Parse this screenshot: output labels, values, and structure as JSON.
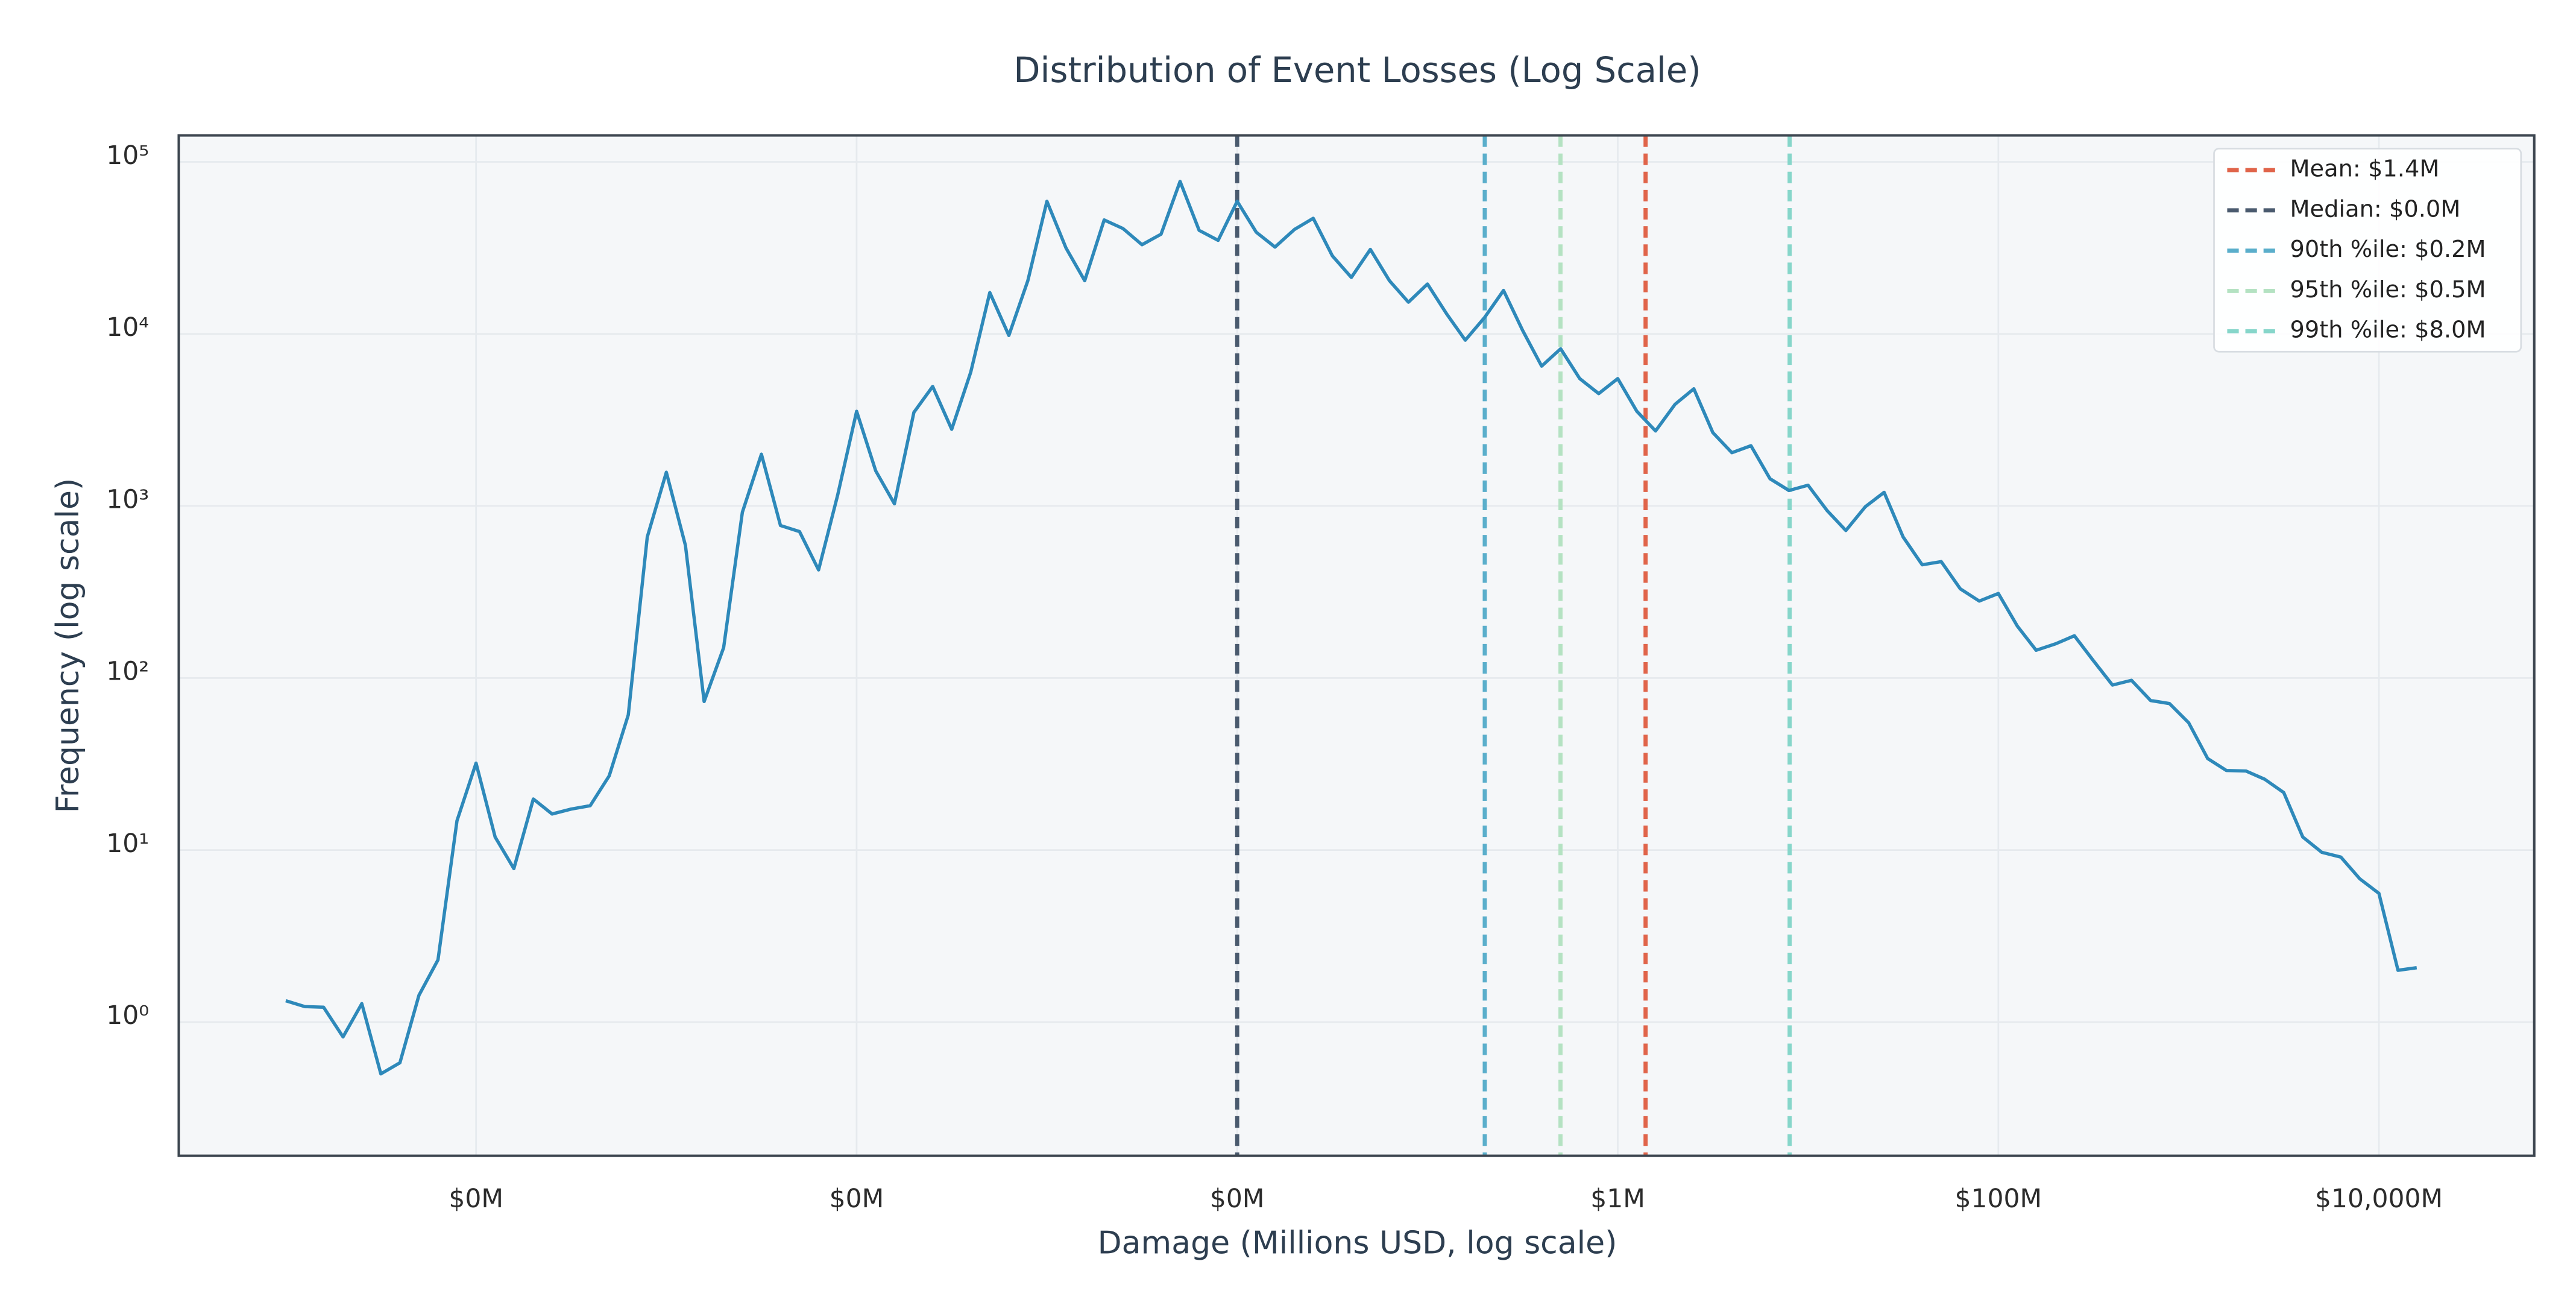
{
  "chart_data": {
    "type": "line",
    "title": "Distribution of Event Losses (Log Scale)",
    "x_label": "Damage (Millions USD, log scale)",
    "y_label": "Frequency (log scale)",
    "xscale": "log",
    "yscale": "log",
    "grid": true,
    "legend": "upper right",
    "xlim": [
      2.74e-08,
      65500
    ],
    "ylim": [
      0.167,
      142600
    ],
    "xticks": [
      {
        "value": 1e-06,
        "label": "$0M"
      },
      {
        "value": 0.0001,
        "label": "$0M"
      },
      {
        "value": 0.01,
        "label": "$0M"
      },
      {
        "value": 1,
        "label": "$1M"
      },
      {
        "value": 100,
        "label": "$100M"
      },
      {
        "value": 10000,
        "label": "$10,000M"
      }
    ],
    "yticks": [
      {
        "value": 1,
        "label": "10⁰"
      },
      {
        "value": 10,
        "label": "10¹"
      },
      {
        "value": 100,
        "label": "10²"
      },
      {
        "value": 1000,
        "label": "10³"
      },
      {
        "value": 10000,
        "label": "10⁴"
      },
      {
        "value": 100000,
        "label": "10⁵"
      }
    ],
    "x": [
      1e-07,
      1.26e-07,
      1.58e-07,
      2e-07,
      2.51e-07,
      3.16e-07,
      3.98e-07,
      5.01e-07,
      6.31e-07,
      7.94e-07,
      1e-06,
      1.26e-06,
      1.58e-06,
      2e-06,
      2.51e-06,
      3.16e-06,
      3.98e-06,
      5.01e-06,
      6.31e-06,
      7.94e-06,
      1e-05,
      1.26e-05,
      1.58e-05,
      2e-05,
      2.51e-05,
      3.16e-05,
      3.98e-05,
      5.01e-05,
      6.31e-05,
      7.94e-05,
      0.0001,
      0.000126,
      0.000158,
      0.0002,
      0.000251,
      0.000316,
      0.000398,
      0.000501,
      0.000631,
      0.000794,
      0.001,
      0.00126,
      0.00158,
      0.002,
      0.00251,
      0.00316,
      0.00398,
      0.00501,
      0.00631,
      0.00794,
      0.01,
      0.0126,
      0.0158,
      0.02,
      0.0251,
      0.0316,
      0.0398,
      0.0501,
      0.0631,
      0.0794,
      0.1,
      0.126,
      0.158,
      0.2,
      0.251,
      0.316,
      0.398,
      0.501,
      0.631,
      0.794,
      1,
      1.26,
      1.58,
      2,
      2.51,
      3.16,
      3.98,
      5.01,
      6.31,
      7.94,
      10,
      12.6,
      15.8,
      20,
      25.1,
      31.6,
      39.8,
      50.1,
      63.1,
      79.4,
      100,
      126,
      158,
      200,
      251,
      316,
      398,
      501,
      631,
      794,
      1000,
      1260,
      1580,
      2000,
      2510,
      3160,
      3980,
      5010,
      6310,
      7940,
      10000,
      12600,
      15800
    ],
    "series": [
      {
        "color": "#2e89ba",
        "values": [
          1.33,
          1.23,
          1.22,
          0.82,
          1.28,
          0.5,
          0.58,
          1.43,
          2.3,
          14.8,
          32,
          11.9,
          7.8,
          19.8,
          16.2,
          17.3,
          18.1,
          27,
          61,
          660,
          1570,
          590,
          73,
          150,
          920,
          2000,
          770,
          710,
          425,
          1150,
          3550,
          1600,
          1030,
          3500,
          4950,
          2790,
          6000,
          17400,
          9800,
          20400,
          59000,
          31600,
          20400,
          46000,
          41000,
          33000,
          38000,
          77000,
          40000,
          35000,
          59000,
          39000,
          32000,
          40500,
          47000,
          28500,
          21300,
          31000,
          20400,
          15300,
          19500,
          13100,
          9200,
          12500,
          17900,
          10500,
          6500,
          8200,
          5500,
          4500,
          5500,
          3550,
          2730,
          3900,
          4800,
          2670,
          2040,
          2240,
          1440,
          1230,
          1320,
          940,
          720,
          990,
          1200,
          660,
          455,
          475,
          330,
          280,
          310,
          200,
          145,
          158,
          176,
          126,
          91,
          97,
          74,
          71,
          55,
          34,
          29,
          28.8,
          25.8,
          21.6,
          11.9,
          9.7,
          9.1,
          6.8,
          5.6,
          2.0,
          2.07
        ]
      }
    ],
    "reference_lines": [
      {
        "name": "Mean: $1.4M",
        "value": 1.4,
        "color": "#e0644a"
      },
      {
        "name": "Median: $0.0M",
        "value": 0.01,
        "color": "#4a5a6e"
      },
      {
        "name": "90th %ile: $0.2M",
        "value": 0.2,
        "color": "#5aaecb"
      },
      {
        "name": "95th %ile: $0.5M",
        "value": 0.5,
        "color": "#b4e2c2"
      },
      {
        "name": "99th %ile: $8.0M",
        "value": 8.0,
        "color": "#86d6ca"
      }
    ]
  }
}
